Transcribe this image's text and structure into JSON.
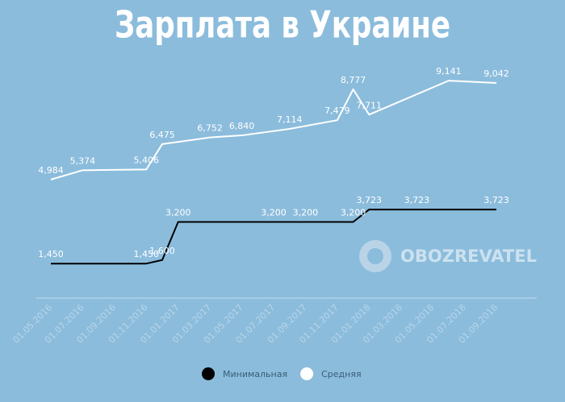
{
  "chart_data": {
    "type": "line",
    "title": "Зарплата в Украине",
    "watermark": "OBOZREVATEL",
    "xlim": [
      "01.05.2016",
      "01.09.2018"
    ],
    "xticks": [
      "01.05.2016",
      "01.07.2016",
      "01.09.2016",
      "01.11.2016",
      "01.01.2017",
      "01.03.2017",
      "01.05.2017",
      "01.07.2017",
      "01.09.2017",
      "01.11.2017",
      "01.01.2018",
      "01.03.2018",
      "01.05.2018",
      "01.07.2018",
      "01.09.2018"
    ],
    "ylim": [
      0,
      10500
    ],
    "legend": "bottom",
    "series": [
      {
        "name": "Минимальная",
        "color": "#000000",
        "x": [
          "01.05.2016",
          "01.11.2016",
          "01.12.2016",
          "01.01.2017",
          "01.07.2017",
          "01.09.2017",
          "01.12.2017",
          "01.01.2018",
          "01.04.2018",
          "01.09.2018"
        ],
        "values": [
          1450,
          1450,
          1600,
          3200,
          3200,
          3200,
          3200,
          3723,
          3723,
          3723
        ],
        "value_labels": [
          "1,450",
          "1,450",
          "1,600",
          "3,200",
          "3,200",
          "3,200",
          "3,200",
          "3,723",
          "3,723",
          "3,723"
        ]
      },
      {
        "name": "Средняя",
        "color": "#ffffff",
        "x": [
          "01.05.2016",
          "01.07.2016",
          "01.11.2016",
          "01.12.2016",
          "01.03.2017",
          "01.05.2017",
          "01.08.2017",
          "01.11.2017",
          "01.12.2017",
          "01.01.2018",
          "01.06.2018",
          "01.09.2018"
        ],
        "values": [
          4984,
          5374,
          5406,
          6475,
          6752,
          6840,
          7114,
          7479,
          8777,
          7711,
          9141,
          9042
        ],
        "value_labels": [
          "4,984",
          "5,374",
          "5,406",
          "6,475",
          "6,752",
          "6,840",
          "7,114",
          "7,479",
          "8,777",
          "7,711",
          "9,141",
          "9,042"
        ]
      }
    ]
  }
}
